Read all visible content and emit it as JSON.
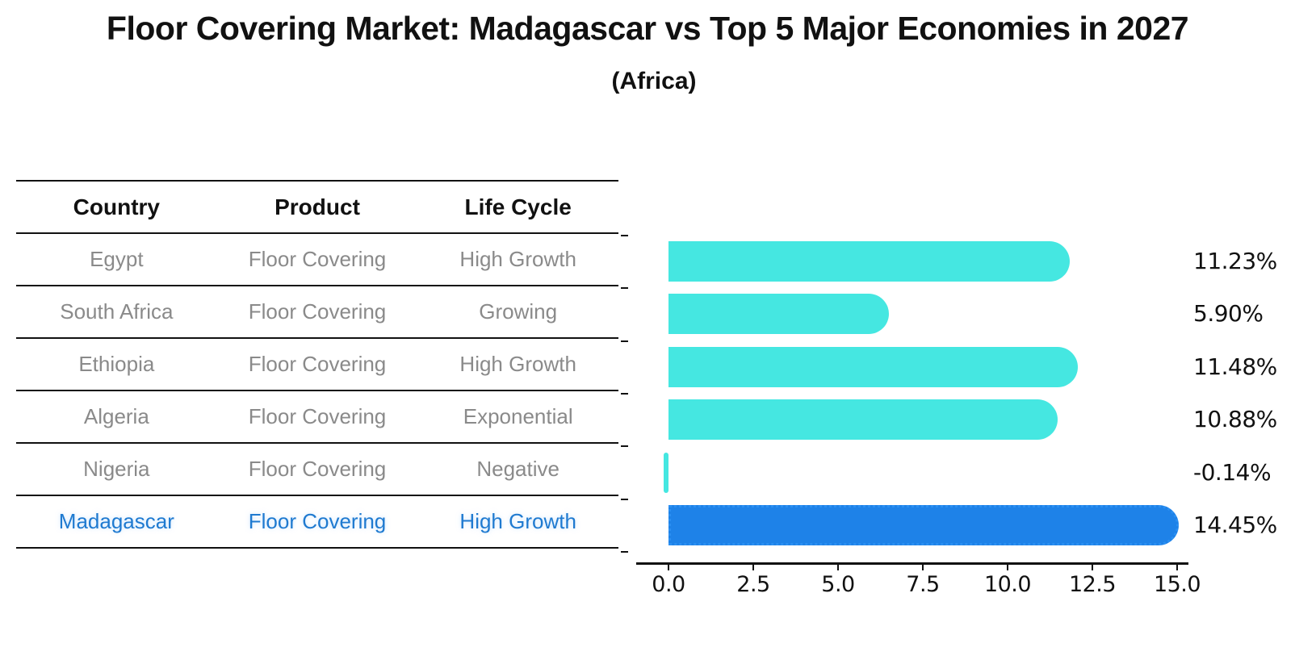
{
  "title": "Floor Covering Market: Madagascar vs Top 5 Major Economies in 2027",
  "subtitle": "(Africa)",
  "table": {
    "headers": [
      "Country",
      "Product",
      "Life Cycle"
    ],
    "rows": [
      {
        "country": "Egypt",
        "product": "Floor Covering",
        "life_cycle": "High Growth"
      },
      {
        "country": "South Africa",
        "product": "Floor Covering",
        "life_cycle": "Growing"
      },
      {
        "country": "Ethiopia",
        "product": "Floor Covering",
        "life_cycle": "High Growth"
      },
      {
        "country": "Algeria",
        "product": "Floor Covering",
        "life_cycle": "Exponential"
      },
      {
        "country": "Nigeria",
        "product": "Floor Covering",
        "life_cycle": "Negative"
      },
      {
        "country": "Madagascar",
        "product": "Floor Covering",
        "life_cycle": "High Growth"
      }
    ],
    "highlight_row": "Madagascar"
  },
  "chart_data": {
    "type": "bar",
    "orientation": "horizontal",
    "categories": [
      "Egypt",
      "South Africa",
      "Ethiopia",
      "Algeria",
      "Nigeria",
      "Madagascar"
    ],
    "values": [
      11.23,
      5.9,
      11.48,
      10.88,
      -0.14,
      14.45
    ],
    "value_labels": [
      "11.23%",
      "5.90%",
      "11.48%",
      "10.88%",
      "-0.14%",
      "14.45%"
    ],
    "unit": "%",
    "xticks": [
      0.0,
      2.5,
      5.0,
      7.5,
      10.0,
      12.5,
      15.0
    ],
    "xtick_labels": [
      "0.0",
      "2.5",
      "5.0",
      "7.5",
      "10.0",
      "12.5",
      "15.0"
    ],
    "xlim": [
      -1.0,
      16.0
    ],
    "grid": false,
    "legend": false,
    "highlight_index": 5,
    "bar_color": "#45e7e1",
    "highlight_bar_color": "#1e82e8",
    "highlight_border_color": "#2a8ff2"
  },
  "colors": {
    "background": "#ffffff",
    "ink": "#111111",
    "table_text": "#8a8a8a",
    "highlight_text": "#1f7ad0"
  }
}
